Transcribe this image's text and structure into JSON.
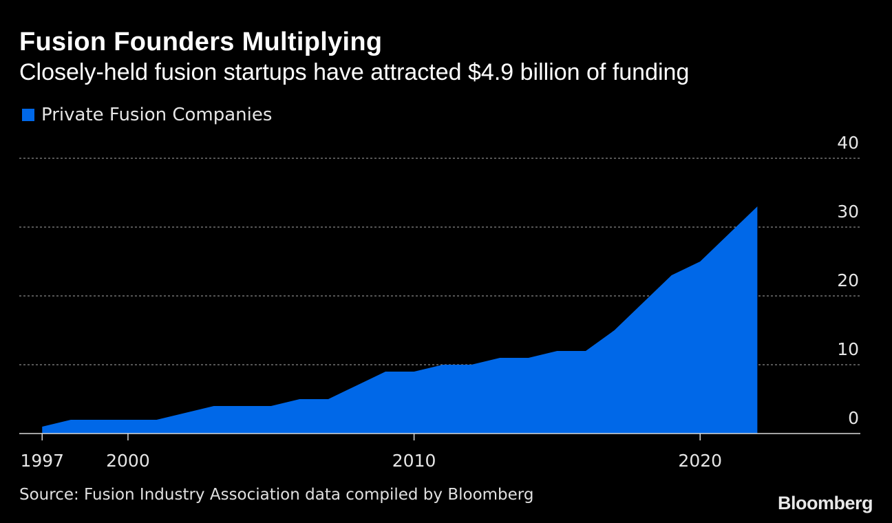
{
  "header": {
    "title": "Fusion Founders Multiplying",
    "subtitle": "Closely-held fusion startups have attracted $4.9 billion of funding"
  },
  "legend": {
    "label": "Private Fusion Companies",
    "color": "#0068e8"
  },
  "footer": {
    "source": "Source: Fusion Industry Association data compiled by Bloomberg",
    "brand": "Bloomberg"
  },
  "colors": {
    "background": "#000000",
    "area": "#0068e8",
    "grid": "#8a8a8a",
    "text": "#ffffff"
  },
  "chart_data": {
    "type": "area",
    "title": "Fusion Founders Multiplying",
    "subtitle": "Closely-held fusion startups have attracted $4.9 billion of funding",
    "xlabel": "",
    "ylabel": "",
    "x": [
      1997,
      1998,
      1999,
      2000,
      2001,
      2002,
      2003,
      2004,
      2005,
      2006,
      2007,
      2008,
      2009,
      2010,
      2011,
      2012,
      2013,
      2014,
      2015,
      2016,
      2017,
      2018,
      2019,
      2020,
      2021,
      2022
    ],
    "series": [
      {
        "name": "Private Fusion Companies",
        "values": [
          1,
          2,
          2,
          2,
          2,
          3,
          4,
          4,
          4,
          5,
          5,
          7,
          9,
          9,
          10,
          10,
          11,
          11,
          12,
          12,
          15,
          19,
          23,
          25,
          29,
          33
        ]
      }
    ],
    "xticks": [
      1997,
      2000,
      2010,
      2020
    ],
    "yticks": [
      0,
      10,
      20,
      30,
      40
    ],
    "xlim": [
      1996.2,
      2025.6
    ],
    "ylim": [
      0,
      40
    ],
    "grid": true,
    "y_axis_side": "right",
    "legend_position": "top-left"
  }
}
